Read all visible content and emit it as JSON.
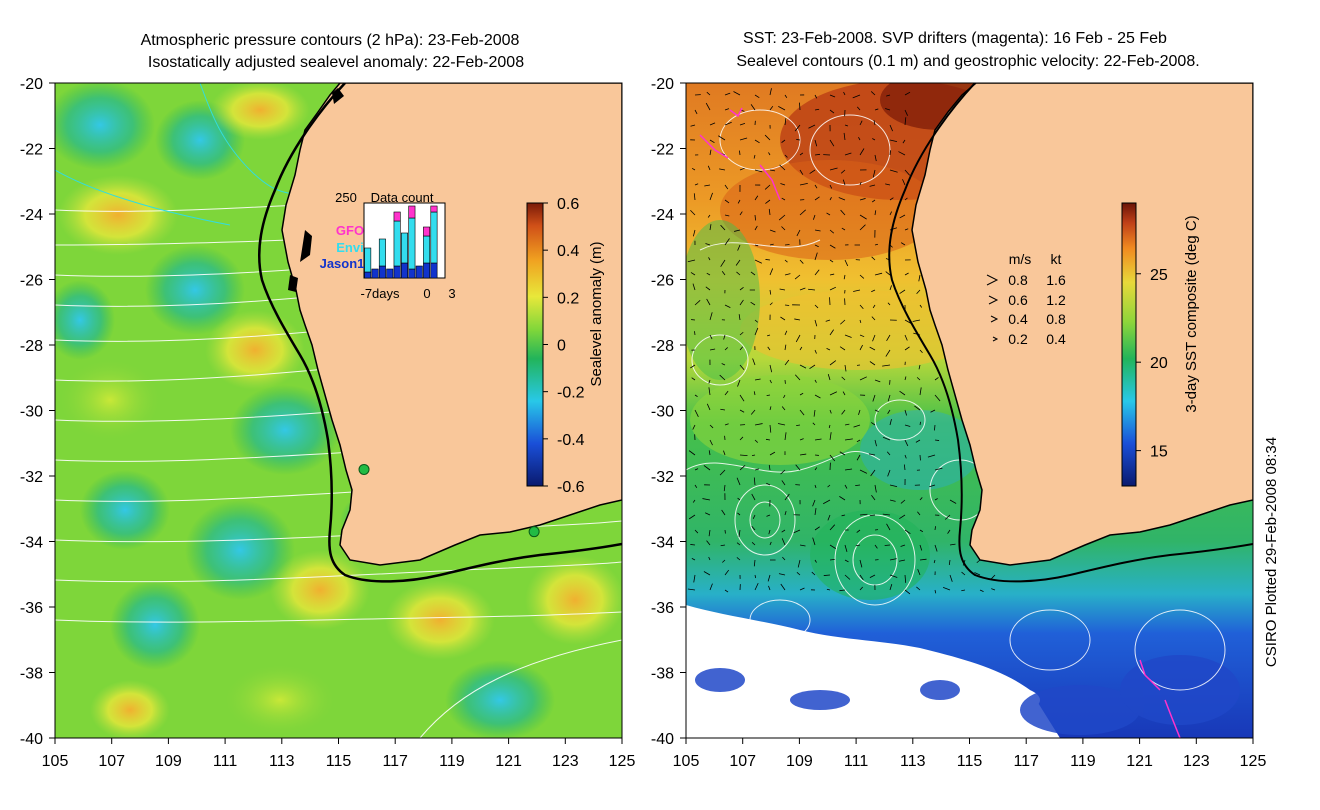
{
  "left_panel": {
    "title_line1": "Atmospheric pressure contours (2 hPa): 23-Feb-2008",
    "title_line2": "Isostatically adjusted sealevel anomaly: 22-Feb-2008",
    "colorbar": {
      "label": "Sealevel anomaly (m)",
      "ticks": [
        "0.6",
        "0.4",
        "0.2",
        "0",
        "-0.2",
        "-0.4",
        "-0.6"
      ],
      "values": [
        0.6,
        0.4,
        0.2,
        0,
        -0.2,
        -0.4,
        -0.6
      ],
      "range": [
        -0.6,
        0.6
      ]
    },
    "data_count_inset": {
      "title": "Data count",
      "ymax_label": "250",
      "legend": [
        {
          "name": "GFO",
          "color": "#ff33cc"
        },
        {
          "name": "Envi",
          "color": "#33ddee"
        },
        {
          "name": "Jason1",
          "color": "#1133cc"
        }
      ],
      "x_labels": [
        "-7days",
        "0",
        "3"
      ],
      "days": [
        -7,
        -6,
        -5,
        -4,
        -3,
        -2,
        -1,
        0,
        1,
        2,
        3
      ],
      "jason": [
        20,
        30,
        40,
        30,
        40,
        50,
        30,
        40,
        50,
        50,
        0
      ],
      "envi": [
        80,
        0,
        90,
        0,
        150,
        100,
        170,
        0,
        90,
        170,
        0
      ],
      "gfo": [
        0,
        0,
        0,
        0,
        30,
        0,
        40,
        0,
        30,
        20,
        0
      ]
    },
    "markers": [
      {
        "lon": 115.9,
        "lat": -31.8
      },
      {
        "lon": 121.9,
        "lat": -33.7
      }
    ]
  },
  "right_panel": {
    "title_line1": "SST: 23-Feb-2008. SVP drifters (magenta): 16 Feb - 25 Feb",
    "title_line2": "Sealevel contours (0.1 m) and geostrophic velocity: 22-Feb-2008.",
    "colorbar": {
      "label": "3-day SST composite (deg C)",
      "ticks": [
        "25",
        "20",
        "15"
      ],
      "values": [
        25,
        20,
        15
      ],
      "range": [
        13,
        29
      ]
    },
    "velocity_key": {
      "header_ms": "m/s",
      "header_kt": "kt",
      "rows": [
        {
          "ms": "0.8",
          "kt": "1.6"
        },
        {
          "ms": "0.6",
          "kt": "1.2"
        },
        {
          "ms": "0.4",
          "kt": "0.8"
        },
        {
          "ms": "0.2",
          "kt": "0.4"
        }
      ]
    }
  },
  "axes": {
    "lon_labels": [
      "105",
      "107",
      "109",
      "111",
      "113",
      "115",
      "117",
      "119",
      "121",
      "123",
      "125"
    ],
    "lon_values": [
      105,
      107,
      109,
      111,
      113,
      115,
      117,
      119,
      121,
      123,
      125
    ],
    "lat_labels": [
      "-20",
      "-22",
      "-24",
      "-26",
      "-28",
      "-30",
      "-32",
      "-34",
      "-36",
      "-38",
      "-40"
    ],
    "lat_values": [
      -20,
      -22,
      -24,
      -26,
      -28,
      -30,
      -32,
      -34,
      -36,
      -38,
      -40
    ]
  },
  "credit": "CSIRO Plotted 29-Feb-2008 08:34",
  "colors": {
    "land": "#f9c79a",
    "coast": "#000000",
    "drifter": "#ff33cc",
    "pressure_contour": "#ffffff",
    "highlight_contour": "#33dddd",
    "marker": "#22bb44"
  }
}
